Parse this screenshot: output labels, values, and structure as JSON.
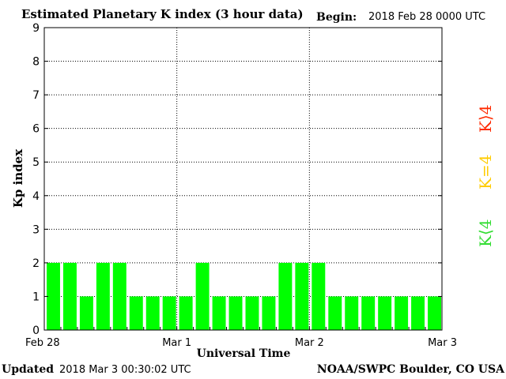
{
  "header": {
    "title": "Estimated Planetary K index (3 hour data)",
    "begin_label": "Begin:",
    "begin_value": "2018 Feb 28 0000 UTC"
  },
  "footer": {
    "updated_label": "Updated",
    "updated_value": "2018 Mar  3 00:30:02 UTC",
    "source": "NOAA/SWPC Boulder, CO USA"
  },
  "legend": {
    "high": {
      "label": "K⟩4",
      "color": "#ff2a00"
    },
    "mid": {
      "label": "K=4",
      "color": "#ffcc00"
    },
    "low": {
      "label": "K⟨4",
      "color": "#33dd33"
    }
  },
  "chart_data": {
    "type": "bar",
    "xlabel": "Universal Time",
    "ylabel": "Kp index",
    "ylim": [
      0,
      9
    ],
    "yticks": [
      0,
      1,
      2,
      3,
      4,
      5,
      6,
      7,
      8,
      9
    ],
    "xtick_labels": [
      "Feb 28",
      "Mar 1",
      "Mar 2",
      "Mar 3"
    ],
    "bar_color": "#00ff00",
    "grid": true,
    "values": [
      2,
      2,
      1,
      2,
      2,
      1,
      1,
      1,
      1,
      2,
      1,
      1,
      1,
      1,
      2,
      2,
      2,
      1,
      1,
      1,
      1,
      1,
      1,
      1
    ]
  }
}
